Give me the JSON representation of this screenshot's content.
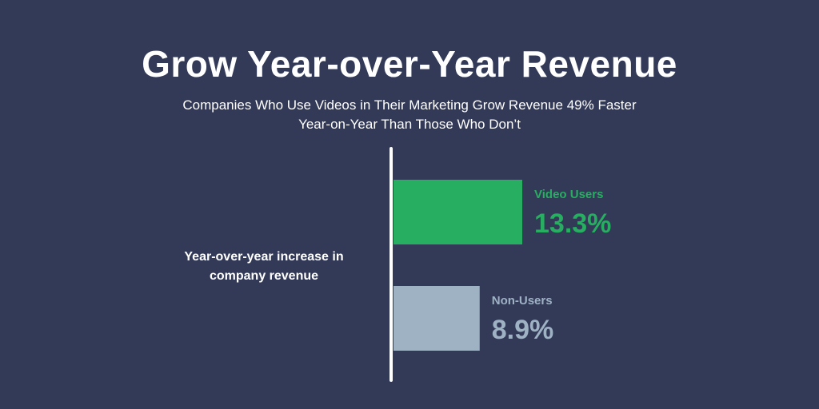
{
  "title": "Grow Year-over-Year Revenue",
  "subtitle_line1": "Companies Who Use Videos in Their Marketing Grow Revenue 49% Faster",
  "subtitle_line2": "Year-on-Year Than Those Who Don’t",
  "colors": {
    "background": "#333a58",
    "video_users": "#27ae60",
    "non_users": "#9fb2c4",
    "axis": "#ffffff"
  },
  "chart_data": {
    "type": "bar",
    "orientation": "horizontal",
    "ylabel_line1": "Year-over-year increase in",
    "ylabel_line2": "company revenue",
    "categories": [
      "Video Users",
      "Non-Users"
    ],
    "values": [
      13.3,
      8.9
    ],
    "value_labels": [
      "13.3%",
      "8.9%"
    ],
    "unit": "%",
    "grid": false,
    "legend": "none"
  }
}
